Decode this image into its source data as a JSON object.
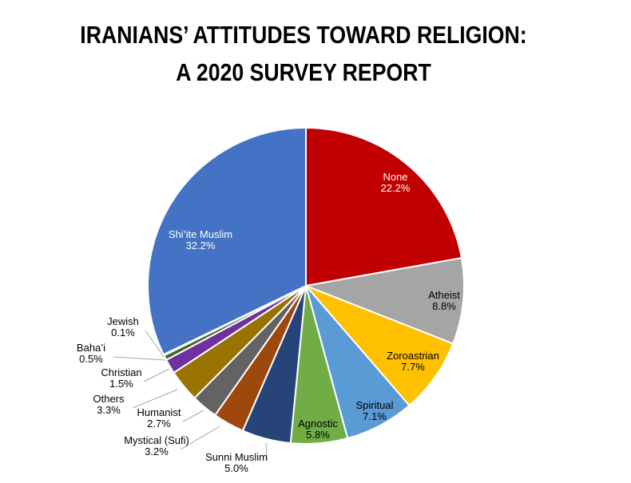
{
  "chart_data": {
    "type": "pie",
    "title": "IRANIANS’ ATTITUDES TOWARD RELIGION:",
    "subtitle": "A 2020 SURVEY REPORT",
    "start": "12 o'clock, clockwise",
    "slices": [
      {
        "label": "None",
        "value": 22.2,
        "display": "22.2%",
        "color": "#C00000",
        "text_color": "#FFFFFF"
      },
      {
        "label": "Atheist",
        "value": 8.8,
        "display": "8.8%",
        "color": "#A5A5A5",
        "text_color": "#000000"
      },
      {
        "label": "Zoroastrian",
        "value": 7.7,
        "display": "7.7%",
        "color": "#FFC000",
        "text_color": "#000000"
      },
      {
        "label": "Spiritual",
        "value": 7.1,
        "display": "7.1%",
        "color": "#5B9BD5",
        "text_color": "#000000"
      },
      {
        "label": "Agnostic",
        "value": 5.8,
        "display": "5.8%",
        "color": "#70AD47",
        "text_color": "#000000"
      },
      {
        "label": "Sunni Muslim",
        "value": 5.0,
        "display": "5.0%",
        "color": "#264478",
        "text_color": "#000000"
      },
      {
        "label": "Mystical (Sufi)",
        "value": 3.2,
        "display": "3.2%",
        "color": "#9E480E",
        "text_color": "#000000"
      },
      {
        "label": "Humanist",
        "value": 2.7,
        "display": "2.7%",
        "color": "#636363",
        "text_color": "#000000"
      },
      {
        "label": "Others",
        "value": 3.3,
        "display": "3.3%",
        "color": "#997300",
        "text_color": "#000000"
      },
      {
        "label": "Christian",
        "value": 1.5,
        "display": "1.5%",
        "color": "#7030A0",
        "text_color": "#000000"
      },
      {
        "label": "Baha’i",
        "value": 0.5,
        "display": "0.5%",
        "color": "#43682B",
        "text_color": "#000000"
      },
      {
        "label": "Jewish",
        "value": 0.1,
        "display": "0.1%",
        "color": "#1F3864",
        "text_color": "#000000"
      },
      {
        "label": "Shi’ite Muslim",
        "value": 32.2,
        "display": "32.2%",
        "color": "#4472C4",
        "text_color": "#FFFFFF"
      }
    ]
  }
}
